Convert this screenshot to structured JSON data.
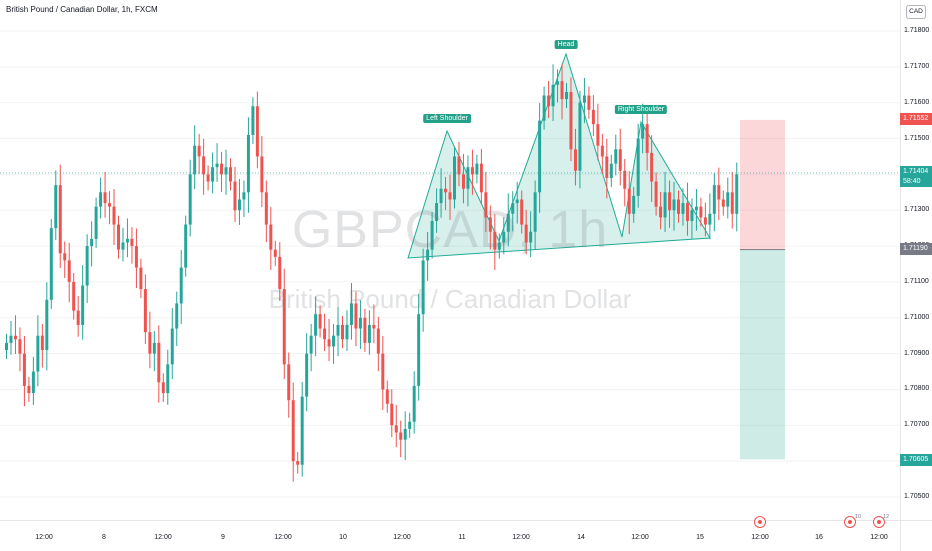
{
  "symbol": {
    "title": "British Pound / Canadian Dollar, 1h, FXCM"
  },
  "watermark": {
    "symbol_interval": "GBPCAD, 1h",
    "description": "British Pound / Canadian Dollar"
  },
  "price_axis": {
    "currency": "CAD",
    "ticks": [
      "1.71800",
      "1.71700",
      "1.71600",
      "1.71500",
      "1.71400",
      "1.71300",
      "1.71200",
      "1.71100",
      "1.71000",
      "1.70900",
      "1.70800",
      "1.70700",
      "1.70600",
      "1.70500"
    ],
    "tags": {
      "stop_loss": "1.71552",
      "current_price": "1.71404",
      "countdown": "58:40",
      "entry": "1.71190",
      "take_profit": "1.70605"
    }
  },
  "time_axis": {
    "labels": [
      "12:00",
      "8",
      "12:00",
      "9",
      "12:00",
      "10",
      "12:00",
      "11",
      "12:00",
      "14",
      "12:00",
      "15",
      "12:00",
      "16",
      "12:00"
    ]
  },
  "events": [
    {
      "name": "canada-flag-icon",
      "count": ""
    },
    {
      "name": "uk-flag-icon",
      "count": "10"
    },
    {
      "name": "canada-flag-icon",
      "count": "12"
    }
  ],
  "pattern_labels": {
    "left_shoulder": "Left Shoulder",
    "head": "Head",
    "right_shoulder": "Right Shoulder"
  },
  "colors": {
    "up": "#26a69a",
    "down": "#ef5350",
    "pattern_fill": "rgba(34,171,148,0.18)",
    "pattern_line": "#22ab94",
    "stop_zone": "rgba(242,54,69,0.20)",
    "target_zone": "rgba(8,153,129,0.20)"
  },
  "chart_data": {
    "type": "candlestick",
    "symbol": "GBPCAD",
    "interval": "1h",
    "ylim": [
      1.7045,
      1.7195
    ],
    "entry": 1.7119,
    "stop_loss": 1.71552,
    "take_profit": 1.70605,
    "last_price": 1.71404,
    "head_and_shoulders": {
      "left_shoulder": 1.7152,
      "head": 1.7174,
      "right_shoulder": 1.7154,
      "neckline": [
        1.7122,
        1.712
      ]
    },
    "closes": [
      1.7093,
      1.7095,
      1.7094,
      1.709,
      1.7081,
      1.7079,
      1.7085,
      1.7095,
      1.7091,
      1.7105,
      1.7125,
      1.7137,
      1.7118,
      1.7116,
      1.711,
      1.7102,
      1.7098,
      1.7109,
      1.712,
      1.7122,
      1.7131,
      1.7135,
      1.7132,
      1.7131,
      1.7126,
      1.7119,
      1.7121,
      1.7122,
      1.712,
      1.7114,
      1.7108,
      1.7096,
      1.709,
      1.7093,
      1.7082,
      1.7079,
      1.7087,
      1.7097,
      1.7104,
      1.7114,
      1.7126,
      1.714,
      1.7148,
      1.7145,
      1.714,
      1.7138,
      1.7142,
      1.7143,
      1.714,
      1.7142,
      1.7138,
      1.713,
      1.7133,
      1.7135,
      1.7151,
      1.7159,
      1.7145,
      1.7135,
      1.7126,
      1.7119,
      1.7117,
      1.7108,
      1.7087,
      1.7077,
      1.706,
      1.7059,
      1.7078,
      1.709,
      1.7095,
      1.7101,
      1.7097,
      1.7094,
      1.7092,
      1.7095,
      1.7098,
      1.7094,
      1.7098,
      1.7104,
      1.7097,
      1.71,
      1.7093,
      1.7098,
      1.7097,
      1.709,
      1.708,
      1.7076,
      1.707,
      1.7068,
      1.7066,
      1.7069,
      1.7071,
      1.7081,
      1.7101,
      1.7116,
      1.7119,
      1.7127,
      1.7132,
      1.7136,
      1.7135,
      1.7133,
      1.7145,
      1.714,
      1.7136,
      1.7142,
      1.714,
      1.7143,
      1.7135,
      1.7128,
      1.7124,
      1.7119,
      1.7121,
      1.7124,
      1.7129,
      1.7132,
      1.7133,
      1.7126,
      1.7121,
      1.7124,
      1.7135,
      1.7155,
      1.7162,
      1.7159,
      1.7165,
      1.7166,
      1.7161,
      1.7163,
      1.7147,
      1.7141,
      1.716,
      1.7162,
      1.7158,
      1.7154,
      1.7148,
      1.7145,
      1.7139,
      1.7143,
      1.7147,
      1.7141,
      1.7136,
      1.7129,
      1.7134,
      1.715,
      1.7154,
      1.7146,
      1.7138,
      1.7131,
      1.7128,
      1.7135,
      1.713,
      1.7133,
      1.7129,
      1.7132,
      1.7127,
      1.713,
      1.7131,
      1.7128,
      1.7126,
      1.7129,
      1.7137,
      1.7133,
      1.7131,
      1.7135,
      1.7129,
      1.714
    ]
  }
}
